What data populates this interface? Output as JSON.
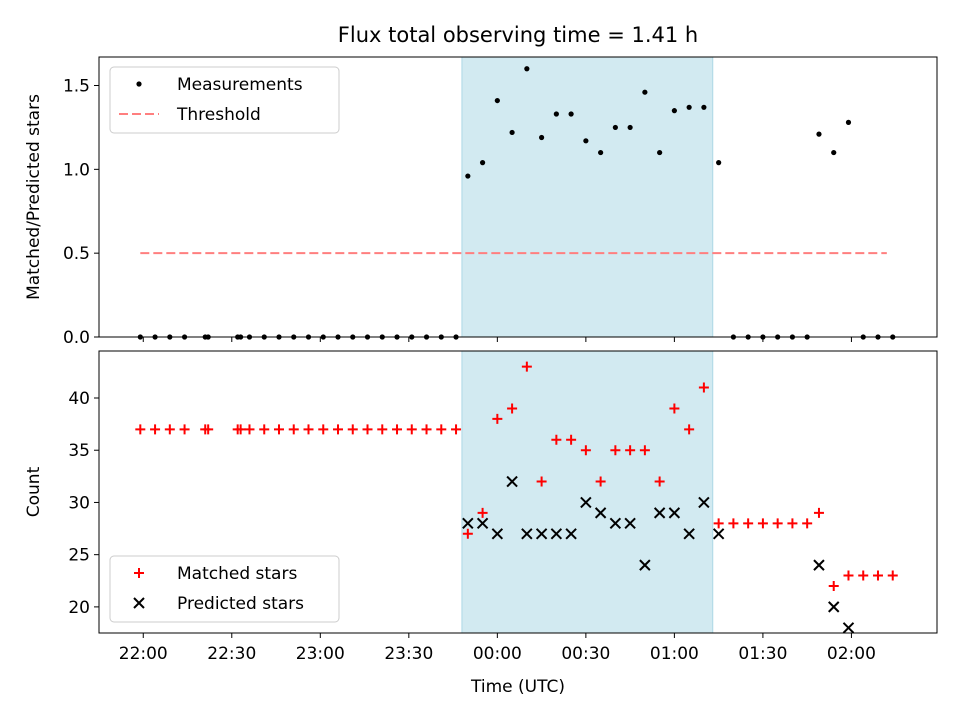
{
  "chart_data": [
    {
      "type": "scatter",
      "title": "Flux total observing time = 1.41 h",
      "xlabel": "",
      "ylabel": "Matched/Predicted stars",
      "xlim": [
        "21:45",
        "02:29"
      ],
      "ylim": [
        0,
        1.67
      ],
      "yticks": [
        "0.0",
        "0.5",
        "1.0",
        "1.5"
      ],
      "highlight_span": {
        "start": "23:48",
        "end": "01:13",
        "color": "#add8e6"
      },
      "legend_position": "upper left",
      "series": [
        {
          "name": "Measurements",
          "marker": "dot",
          "color": "#000000",
          "x": [
            "21:59",
            "22:04",
            "22:09",
            "22:14",
            "22:21",
            "22:22",
            "22:32",
            "22:33",
            "22:36",
            "22:41",
            "22:46",
            "22:51",
            "22:56",
            "23:01",
            "23:06",
            "23:11",
            "23:16",
            "23:21",
            "23:26",
            "23:31",
            "23:36",
            "23:41",
            "23:46",
            "23:50",
            "23:55",
            "24:00",
            "24:05",
            "24:10",
            "24:15",
            "24:20",
            "24:25",
            "24:30",
            "24:35",
            "24:40",
            "24:45",
            "24:50",
            "24:55",
            "25:00",
            "25:05",
            "25:10",
            "25:15",
            "25:20",
            "25:25",
            "25:30",
            "25:35",
            "25:40",
            "25:45",
            "25:49",
            "25:54",
            "25:59",
            "26:04",
            "26:09",
            "26:14"
          ],
          "y": [
            0,
            0,
            0,
            0,
            0,
            0,
            0,
            0,
            0,
            0,
            0,
            0,
            0,
            0,
            0,
            0,
            0,
            0,
            0,
            0,
            0,
            0,
            0,
            0.96,
            1.04,
            1.41,
            1.22,
            1.6,
            1.19,
            1.33,
            1.33,
            1.17,
            1.1,
            1.25,
            1.25,
            1.46,
            1.1,
            1.35,
            1.37,
            1.37,
            1.04,
            0,
            0,
            0,
            0,
            0,
            0,
            1.21,
            1.1,
            1.28,
            0,
            0,
            0
          ]
        },
        {
          "name": "Threshold",
          "style": "dashed",
          "color": "#ff7f7f",
          "x": [
            "21:59",
            "26:12"
          ],
          "y": [
            0.5,
            0.5
          ]
        }
      ]
    },
    {
      "type": "scatter",
      "title": "",
      "xlabel": "Time (UTC)",
      "ylabel": "Count",
      "xlim": [
        "21:45",
        "02:29"
      ],
      "ylim": [
        17.5,
        44.5
      ],
      "yticks": [
        "20",
        "25",
        "30",
        "35",
        "40"
      ],
      "xticks": [
        "22:00",
        "22:30",
        "23:00",
        "23:30",
        "00:00",
        "00:30",
        "01:00",
        "01:30",
        "02:00"
      ],
      "highlight_span": {
        "start": "23:48",
        "end": "01:13",
        "color": "#add8e6"
      },
      "legend_position": "lower left",
      "series": [
        {
          "name": "Matched stars",
          "marker": "plus",
          "color": "#ff0000",
          "x": [
            "21:59",
            "22:04",
            "22:09",
            "22:14",
            "22:21",
            "22:22",
            "22:32",
            "22:33",
            "22:36",
            "22:41",
            "22:46",
            "22:51",
            "22:56",
            "23:01",
            "23:06",
            "23:11",
            "23:16",
            "23:21",
            "23:26",
            "23:31",
            "23:36",
            "23:41",
            "23:46",
            "23:50",
            "23:55",
            "24:00",
            "24:05",
            "24:10",
            "24:15",
            "24:20",
            "24:25",
            "24:30",
            "24:35",
            "24:40",
            "24:45",
            "24:50",
            "24:55",
            "25:00",
            "25:05",
            "25:10",
            "25:15",
            "25:20",
            "25:25",
            "25:30",
            "25:35",
            "25:40",
            "25:45",
            "25:49",
            "25:54",
            "25:59",
            "26:04",
            "26:09",
            "26:14"
          ],
          "y": [
            37,
            37,
            37,
            37,
            37,
            37,
            37,
            37,
            37,
            37,
            37,
            37,
            37,
            37,
            37,
            37,
            37,
            37,
            37,
            37,
            37,
            37,
            37,
            27,
            29,
            38,
            39,
            43,
            32,
            36,
            36,
            35,
            32,
            35,
            35,
            35,
            32,
            39,
            37,
            41,
            28,
            28,
            28,
            28,
            28,
            28,
            28,
            29,
            22,
            23,
            23,
            23,
            23
          ]
        },
        {
          "name": "Predicted stars",
          "marker": "x",
          "color": "#000000",
          "x": [
            "23:50",
            "23:55",
            "24:00",
            "24:05",
            "24:10",
            "24:15",
            "24:20",
            "24:25",
            "24:30",
            "24:35",
            "24:40",
            "24:45",
            "24:50",
            "24:55",
            "25:00",
            "25:05",
            "25:10",
            "25:15",
            "25:49",
            "25:54",
            "25:59"
          ],
          "y": [
            28,
            28,
            27,
            32,
            27,
            27,
            27,
            27,
            30,
            29,
            28,
            28,
            24,
            29,
            29,
            27,
            30,
            27,
            24,
            20,
            18
          ]
        }
      ]
    }
  ]
}
